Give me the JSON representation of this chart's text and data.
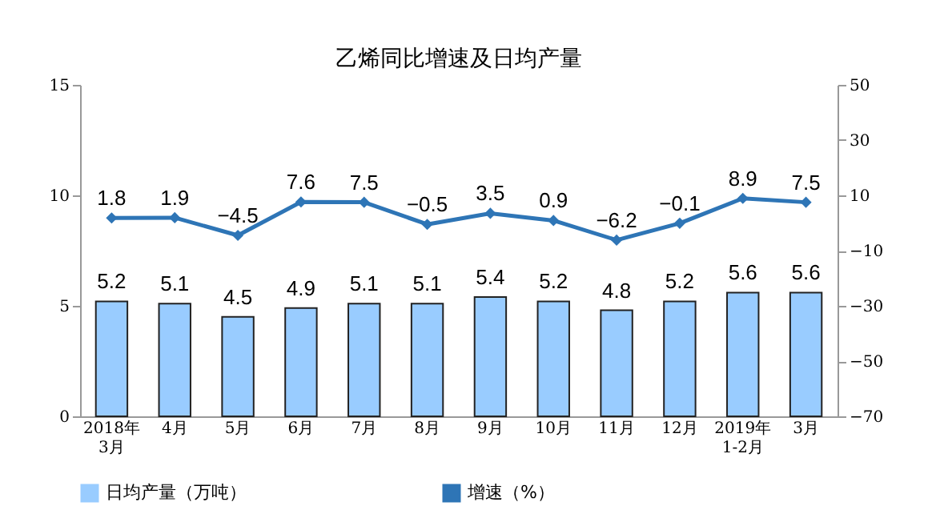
{
  "chart_data": {
    "type": "bar",
    "title": "乙烯同比增速及日均产量",
    "categories": [
      "2018年\n3月",
      "4月",
      "5月",
      "6月",
      "7月",
      "8月",
      "9月",
      "10月",
      "11月",
      "12月",
      "2019年\n1-2月",
      "3月"
    ],
    "series": [
      {
        "name": "日均产量（万吨）",
        "color": "#99ccff",
        "values": [
          5.2,
          5.1,
          4.5,
          4.9,
          5.1,
          5.1,
          5.4,
          5.2,
          4.8,
          5.2,
          5.6,
          5.6
        ]
      },
      {
        "name": "增速（%）",
        "type": "line",
        "axis": "y2",
        "color": "#2e75b6",
        "marker": "diamond",
        "values": [
          1.8,
          1.9,
          -4.5,
          7.6,
          7.5,
          -0.5,
          3.5,
          0.9,
          -6.2,
          -0.1,
          8.9,
          7.5
        ]
      }
    ],
    "ylim": [
      0,
      15
    ],
    "yticks": [
      0,
      5,
      10,
      15
    ],
    "y2lim": [
      -70,
      50
    ],
    "y2ticks": [
      -70,
      -50,
      -30,
      -10,
      10,
      30,
      50
    ],
    "data_labels": true,
    "grid": false,
    "legend": "bottom"
  }
}
